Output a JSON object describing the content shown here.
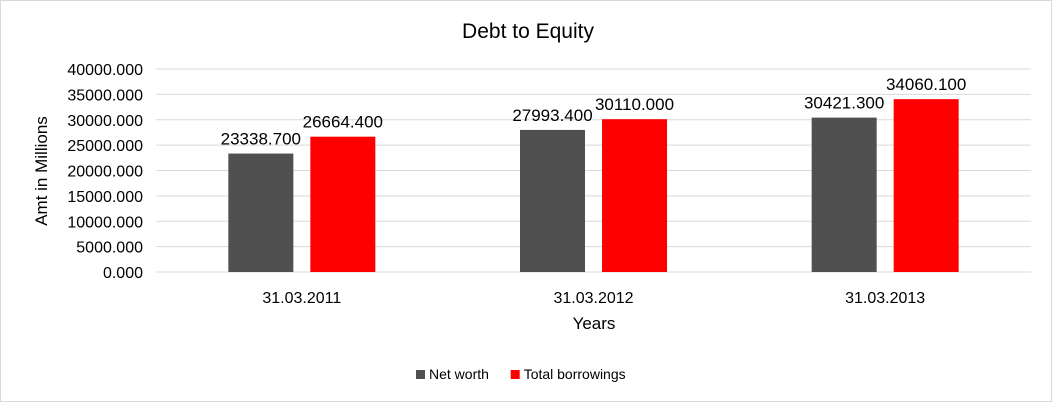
{
  "chart_data": {
    "type": "bar",
    "title": "Debt to Equity",
    "xlabel": "Years",
    "ylabel": "Amt in Millions",
    "categories": [
      "31.03.2011",
      "31.03.2012",
      "31.03.2013"
    ],
    "series": [
      {
        "name": "Net worth",
        "color": "#505050",
        "values": [
          23338.7,
          27993.4,
          30421.3
        ],
        "labels": [
          "23338.700",
          "27993.400",
          "30421.300"
        ]
      },
      {
        "name": "Total borrowings",
        "color": "#ff0000",
        "values": [
          26664.4,
          30110.0,
          34060.1
        ],
        "labels": [
          "26664.400",
          "30110.000",
          "34060.100"
        ]
      }
    ],
    "ylim": [
      0,
      40000
    ],
    "yticks": [
      "0.000",
      "5000.000",
      "10000.000",
      "15000.000",
      "20000.000",
      "25000.000",
      "30000.000",
      "35000.000",
      "40000.000"
    ],
    "grid": true,
    "legend": "bottom"
  }
}
